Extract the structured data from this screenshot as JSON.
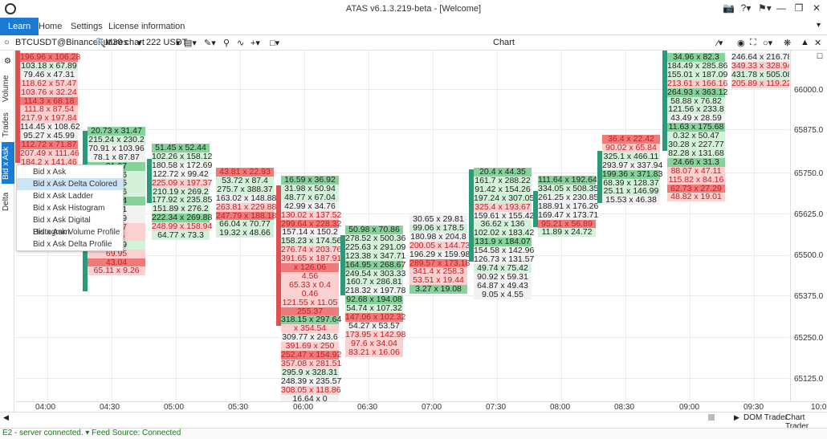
{
  "window": {
    "title": "ATAS v6.1.3.219-beta - [Welcome]"
  },
  "menubar": {
    "tabs": [
      "Learn",
      "Home",
      "Settings",
      "License information"
    ],
    "active": 0
  },
  "toolbar": {
    "symbol": "BTCUSDT@BinanceFutures",
    "timeframe": "M30 chart",
    "instrument_count": "222 USDT",
    "center_label": "Chart"
  },
  "sidebar": {
    "tabs": [
      "Volume",
      "Trades",
      "Bid x Ask",
      "Delta"
    ],
    "active": 2
  },
  "context_menu": {
    "items": [
      "Bid x Ask",
      "Bid x Ask Delta Colored",
      "Bid x Ask Ladder",
      "Bid x Ask Histogram",
      "Bid x Ask Digital Histogram",
      "Bid x Ask Volume Profile",
      "Bid x Ask Delta Profile"
    ],
    "hovered": 1
  },
  "price_scale": [
    "66000.0",
    "65875.0",
    "65750.0",
    "65625.0",
    "65500.0",
    "65375.0",
    "65250.0",
    "65125.0"
  ],
  "time_scale": [
    "04:00",
    "04:30",
    "05:00",
    "05:30",
    "06:00",
    "06:30",
    "07:00",
    "07:30",
    "08:00",
    "08:30",
    "09:00",
    "09:30",
    "10:0"
  ],
  "bottom_tabs": {
    "dom": "DOM Trader",
    "chart": "Chart Trader"
  },
  "status": "E2 - server connected. ▾ Feed Source: Connected",
  "chart_data": {
    "type": "table",
    "columns": [
      {
        "time": "04:00",
        "cells": [
          {
            "v": "196.96 x 106.28",
            "t": "sell"
          },
          {
            "v": "103.18 x 67.89",
            "t": "buy"
          },
          {
            "v": "79.46 x 47.31",
            "t": "neutral"
          },
          {
            "v": "118.62 x 57.47",
            "t": "sell"
          },
          {
            "v": "103.76 x 32.24",
            "t": "sell"
          },
          {
            "v": "114.3 x 68.18",
            "t": "sell"
          },
          {
            "v": "111.8 x 87.54",
            "t": "sell"
          },
          {
            "v": "217.9 x 197.84",
            "t": "sell"
          },
          {
            "v": "114.45 x 108.62",
            "t": "neutral"
          },
          {
            "v": "95.27 x 45.99",
            "t": "neutral"
          },
          {
            "v": "112.72 x 71.87",
            "t": "sell"
          },
          {
            "v": "207.49 x 111.46",
            "t": "sell"
          },
          {
            "v": "184.2 x 141.46",
            "t": "sell"
          }
        ]
      },
      {
        "time": "04:30",
        "cells": [
          {
            "v": "20.73 x 31.47",
            "t": "buy"
          },
          {
            "v": "215.24 x 230.2",
            "t": "buy"
          },
          {
            "v": "70.91 x 103.96",
            "t": "neutral"
          },
          {
            "v": "78.1 x 87.87",
            "t": "neutral"
          },
          {
            "v": "91.97",
            "t": "buy"
          },
          {
            "v": "59.36",
            "t": "buy"
          },
          {
            "v": "36.35",
            "t": "buy"
          },
          {
            "v": "78.56",
            "t": "buy"
          },
          {
            "v": "75.24",
            "t": "buy"
          },
          {
            "v": "68.91",
            "t": "neutral"
          },
          {
            "v": "74.09",
            "t": "neutral"
          },
          {
            "v": "36.67",
            "t": "sell"
          },
          {
            "v": "72.5",
            "t": "sell"
          },
          {
            "v": "71.49",
            "t": "buy"
          },
          {
            "v": "69.95",
            "t": "sell"
          },
          {
            "v": "43.04",
            "t": "sell"
          },
          {
            "v": "65.11 x 9.26",
            "t": "sell"
          }
        ]
      },
      {
        "time": "05:00",
        "cells": [
          {
            "v": "51.45 x 52.44",
            "t": "buy"
          },
          {
            "v": "102.26 x 158.12",
            "t": "buy"
          },
          {
            "v": "180.58 x 172.69",
            "t": "neutral"
          },
          {
            "v": "122.72 x 99.42",
            "t": "neutral"
          },
          {
            "v": "225.09 x 197.37",
            "t": "sell"
          },
          {
            "v": "210.19 x 269.2",
            "t": "buy"
          },
          {
            "v": "177.92 x 235.85",
            "t": "buy"
          },
          {
            "v": "151.89 x 276.2",
            "t": "buy"
          },
          {
            "v": "222.34 x 269.88",
            "t": "buy"
          },
          {
            "v": "248.99 x 158.94",
            "t": "sell"
          },
          {
            "v": "64.77 x 73.3",
            "t": "buy"
          }
        ]
      },
      {
        "time": "05:30",
        "cells": [
          {
            "v": "43.81 x 22.93",
            "t": "sell"
          },
          {
            "v": "53.72 x 87.4",
            "t": "buy"
          },
          {
            "v": "275.7 x 388.37",
            "t": "buy"
          },
          {
            "v": "163.02 x 148.88",
            "t": "neutral"
          },
          {
            "v": "263.81 x 229.88",
            "t": "sell"
          },
          {
            "v": "247.79 x 188.18",
            "t": "sell"
          },
          {
            "v": "66.04 x 70.77",
            "t": "buy"
          },
          {
            "v": "19.32 x 48.66",
            "t": "buy"
          }
        ]
      },
      {
        "time": "06:00",
        "cells": [
          {
            "v": "16.59 x 36.92",
            "t": "buy"
          },
          {
            "v": "31.98 x 50.94",
            "t": "buy"
          },
          {
            "v": "48.77 x 67.04",
            "t": "buy"
          },
          {
            "v": "42.99 x 34.76",
            "t": "neutral"
          },
          {
            "v": "130.02 x 137.52",
            "t": "sell"
          },
          {
            "v": "299.64 x 228.32",
            "t": "sell"
          },
          {
            "v": "157.14 x 150.2",
            "t": "neutral"
          },
          {
            "v": "158.23 x 174.56",
            "t": "buy"
          },
          {
            "v": "276.74 x 203.76",
            "t": "sell"
          },
          {
            "v": "391.65 x 187.91",
            "t": "sell"
          },
          {
            "v": "x 126.06",
            "t": "sell"
          },
          {
            "v": "4.56",
            "t": "sell"
          },
          {
            "v": "65.33 x 0.4",
            "t": "sell"
          },
          {
            "v": "0.46",
            "t": "sell"
          },
          {
            "v": "121.55 x 11.05",
            "t": "sell"
          },
          {
            "v": "255.37",
            "t": "sell"
          },
          {
            "v": "318.15 x 297.64",
            "t": "buy"
          },
          {
            "v": "x 354.54",
            "t": "sell"
          },
          {
            "v": "309.77 x 243.6",
            "t": "neutral"
          },
          {
            "v": "391.69 x 250",
            "t": "sell"
          },
          {
            "v": "252.47 x 154.92",
            "t": "sell"
          },
          {
            "v": "357.08 x 281.51",
            "t": "sell"
          },
          {
            "v": "295.9 x 328.31",
            "t": "buy"
          },
          {
            "v": "248.39 x 235.57",
            "t": "neutral"
          },
          {
            "v": "308.05 x 118.86",
            "t": "sell"
          },
          {
            "v": "16.64 x 0",
            "t": "neutral"
          }
        ]
      },
      {
        "time": "06:30",
        "cells": [
          {
            "v": "50.98 x 70.86",
            "t": "buy"
          },
          {
            "v": "278.52 x 500.36",
            "t": "buy"
          },
          {
            "v": "225.63 x 291.09",
            "t": "buy"
          },
          {
            "v": "123.38 x 347.71",
            "t": "buy"
          },
          {
            "v": "164.95 x 268.67",
            "t": "buy"
          },
          {
            "v": "249.54 x 303.33",
            "t": "buy"
          },
          {
            "v": "160.7 x 286.81",
            "t": "buy"
          },
          {
            "v": "218.32 x 197.78",
            "t": "neutral"
          },
          {
            "v": "92.68 x 194.08",
            "t": "buy"
          },
          {
            "v": "54.74 x 107.32",
            "t": "buy"
          },
          {
            "v": "147.06 x 102.32",
            "t": "sell"
          },
          {
            "v": "54.27 x 53.57",
            "t": "neutral"
          },
          {
            "v": "173.95 x 142.98",
            "t": "sell"
          },
          {
            "v": "97.6 x 34.04",
            "t": "sell"
          },
          {
            "v": "83.21 x 16.06",
            "t": "sell"
          }
        ]
      },
      {
        "time": "07:00",
        "cells": [
          {
            "v": "30.65 x 29.81",
            "t": "neutral"
          },
          {
            "v": "99.06 x 178.5",
            "t": "buy"
          },
          {
            "v": "180.98 x 204.8",
            "t": "neutral"
          },
          {
            "v": "200.05 x 144.73",
            "t": "sell"
          },
          {
            "v": "196.29 x 159.98",
            "t": "neutral"
          },
          {
            "v": "289.57 x 173.18",
            "t": "sell"
          },
          {
            "v": "341.4 x 258.3",
            "t": "sell"
          },
          {
            "v": "53.51 x 19.44",
            "t": "sell"
          },
          {
            "v": "3.27 x 19.08",
            "t": "buy"
          }
        ]
      },
      {
        "time": "07:30",
        "cells": [
          {
            "v": "20.4 x 44.35",
            "t": "buy"
          },
          {
            "v": "161.7 x 288.22",
            "t": "buy"
          },
          {
            "v": "91.42 x 154.26",
            "t": "buy"
          },
          {
            "v": "197.24 x 307.05",
            "t": "buy"
          },
          {
            "v": "325.4 x 193.67",
            "t": "sell"
          },
          {
            "v": "159.61 x 155.42",
            "t": "neutral"
          },
          {
            "v": "36.62 x 136",
            "t": "buy"
          },
          {
            "v": "102.02 x 183.42",
            "t": "buy"
          },
          {
            "v": "131.9 x 184.07",
            "t": "buy"
          },
          {
            "v": "154.58 x 142.96",
            "t": "neutral"
          },
          {
            "v": "126.73 x 131.57",
            "t": "neutral"
          },
          {
            "v": "49.74 x 75.42",
            "t": "buy"
          },
          {
            "v": "90.92 x 59.31",
            "t": "neutral"
          },
          {
            "v": "64.87 x 49.43",
            "t": "neutral"
          },
          {
            "v": "9.05 x 4.55",
            "t": "neutral"
          }
        ]
      },
      {
        "time": "08:00",
        "cells": [
          {
            "v": "111.64 x 192.64",
            "t": "buy"
          },
          {
            "v": "334.05 x 508.35",
            "t": "buy"
          },
          {
            "v": "261.25 x 230.85",
            "t": "neutral"
          },
          {
            "v": "188.91 x 176.26",
            "t": "neutral"
          },
          {
            "v": "169.47 x 173.71",
            "t": "neutral"
          },
          {
            "v": "95.21 x 56.89",
            "t": "sell"
          },
          {
            "v": "11.89 x 24.72",
            "t": "buy"
          }
        ]
      },
      {
        "time": "08:30",
        "cells": [
          {
            "v": "36.4 x 22.42",
            "t": "sell"
          },
          {
            "v": "90.02 x 65.84",
            "t": "sell"
          },
          {
            "v": "325.1 x 466.11",
            "t": "buy"
          },
          {
            "v": "293.97 x 337.94",
            "t": "neutral"
          },
          {
            "v": "199.36 x 371.83",
            "t": "buy"
          },
          {
            "v": "68.39 x 128.37",
            "t": "buy"
          },
          {
            "v": "25.11 x 146.99",
            "t": "buy"
          },
          {
            "v": "15.53 x 46.38",
            "t": "neutral"
          }
        ]
      },
      {
        "time": "09:00",
        "cells": [
          {
            "v": "34.96 x 82.3",
            "t": "buy"
          },
          {
            "v": "184.49 x 285.86",
            "t": "buy"
          },
          {
            "v": "155.01 x 187.09",
            "t": "buy"
          },
          {
            "v": "213.61 x 166.16",
            "t": "sell"
          },
          {
            "v": "264.93 x 363.12",
            "t": "buy"
          },
          {
            "v": "58.88 x 76.82",
            "t": "buy"
          },
          {
            "v": "121.56 x 233.8",
            "t": "buy"
          },
          {
            "v": "43.49 x 28.59",
            "t": "neutral"
          },
          {
            "v": "11.63 x 175.68",
            "t": "buy"
          },
          {
            "v": "0.32 x 50.47",
            "t": "buy"
          },
          {
            "v": "30.28 x 227.77",
            "t": "buy"
          },
          {
            "v": "82.28 x 131.68",
            "t": "buy"
          },
          {
            "v": "24.66 x 31.3",
            "t": "buy"
          },
          {
            "v": "88.07 x 47.11",
            "t": "sell"
          },
          {
            "v": "115.82 x 84.16",
            "t": "sell"
          },
          {
            "v": "62.73 x 27.29",
            "t": "sell"
          },
          {
            "v": "48.82 x 19.01",
            "t": "sell"
          }
        ]
      },
      {
        "time": "09:30",
        "cells": [
          {
            "v": "246.64 x 216.78",
            "t": "neutral"
          },
          {
            "v": "349.33 x 328.94",
            "t": "sell"
          },
          {
            "v": "431.78 x 505.08",
            "t": "buy"
          },
          {
            "v": "205.89 x 119.22",
            "t": "sell"
          }
        ]
      }
    ]
  }
}
